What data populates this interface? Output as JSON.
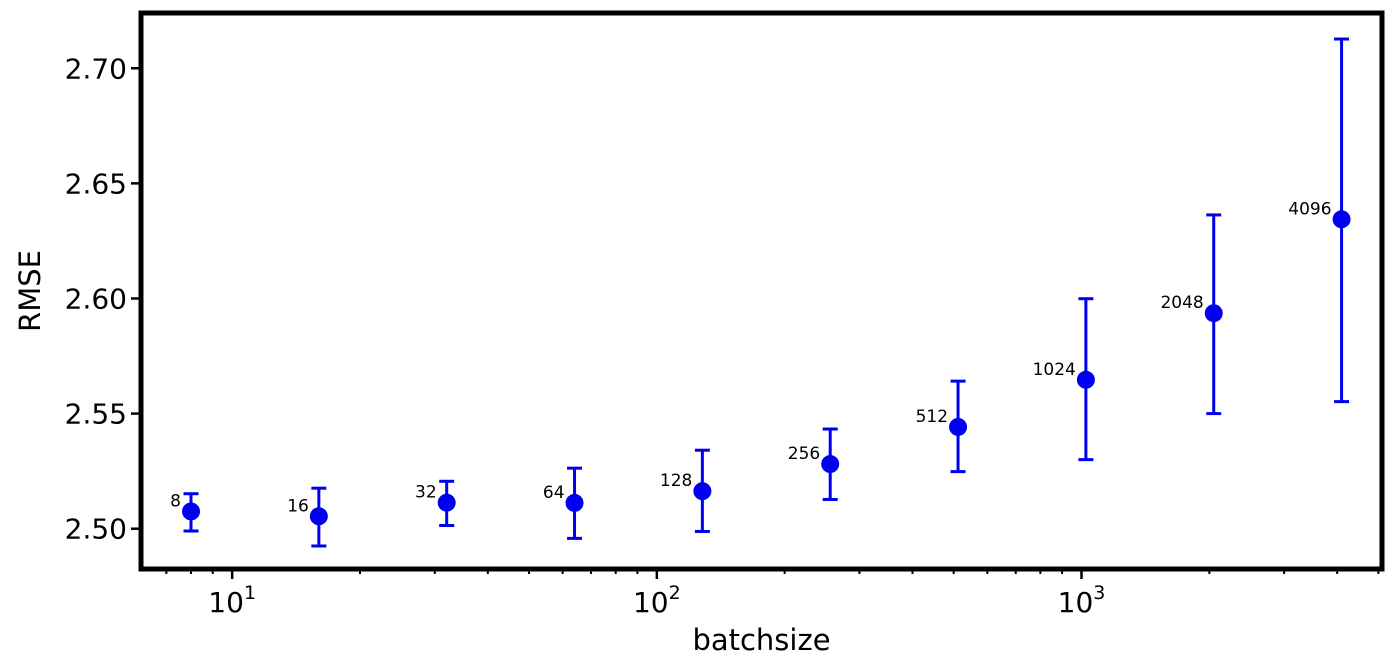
{
  "chart_data": {
    "type": "scatter",
    "xlabel": "batchsize",
    "ylabel": "RMSE",
    "xscale": "log",
    "xlim": [
      6.1,
      5100
    ],
    "ylim": [
      2.4825,
      2.724
    ],
    "grid": false,
    "color": "#0000ee",
    "y_ticks": [
      2.5,
      2.55,
      2.6,
      2.65,
      2.7
    ],
    "y_tick_labels": [
      "2.50",
      "2.55",
      "2.60",
      "2.65",
      "2.70"
    ],
    "x_ticks": [
      {
        "value": 10,
        "base": "10",
        "exp": "1"
      },
      {
        "value": 100,
        "base": "10",
        "exp": "2"
      },
      {
        "value": 1000,
        "base": "10",
        "exp": "3"
      }
    ],
    "points": [
      {
        "label": "8",
        "x": 8,
        "y": 2.5075,
        "lower": 2.499,
        "upper": 2.5152
      },
      {
        "label": "16",
        "x": 16,
        "y": 2.5054,
        "lower": 2.4925,
        "upper": 2.5176
      },
      {
        "label": "32",
        "x": 32,
        "y": 2.5113,
        "lower": 2.5014,
        "upper": 2.5206
      },
      {
        "label": "64",
        "x": 64,
        "y": 2.5112,
        "lower": 2.4958,
        "upper": 2.5263
      },
      {
        "label": "128",
        "x": 128,
        "y": 2.5163,
        "lower": 2.4988,
        "upper": 2.5341
      },
      {
        "label": "256",
        "x": 256,
        "y": 2.5281,
        "lower": 2.5127,
        "upper": 2.5433
      },
      {
        "label": "512",
        "x": 512,
        "y": 2.5442,
        "lower": 2.5248,
        "upper": 2.5641
      },
      {
        "label": "1024",
        "x": 1024,
        "y": 2.5647,
        "lower": 2.53,
        "upper": 2.5999
      },
      {
        "label": "2048",
        "x": 2048,
        "y": 2.5936,
        "lower": 2.55,
        "upper": 2.6363
      },
      {
        "label": "4096",
        "x": 4096,
        "y": 2.6344,
        "lower": 2.5552,
        "upper": 2.7127
      }
    ]
  }
}
